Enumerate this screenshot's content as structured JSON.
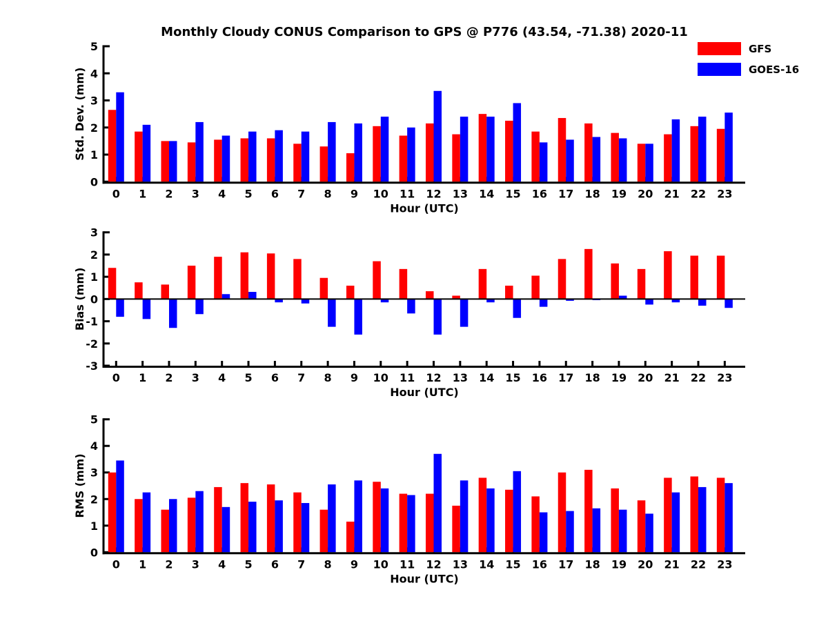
{
  "title": "Monthly Cloudy CONUS Comparison to GPS @ P776 (43.54, -71.38) 2020-11",
  "legend": {
    "position": "top-right",
    "items": [
      {
        "label": "GFS",
        "color": "#ff0000"
      },
      {
        "label": "GOES-16",
        "color": "#0000ff"
      }
    ]
  },
  "chart_data": [
    {
      "id": "stddev",
      "type": "bar",
      "ylabel": "Std. Dev. (mm)",
      "xlabel": "Hour (UTC)",
      "ylim": [
        0,
        5
      ],
      "yticks": [
        0,
        1,
        2,
        3,
        4,
        5
      ],
      "categories": [
        0,
        1,
        2,
        3,
        4,
        5,
        6,
        7,
        8,
        9,
        10,
        11,
        12,
        13,
        14,
        15,
        16,
        17,
        18,
        19,
        20,
        21,
        22,
        23
      ],
      "grid": false,
      "series": [
        {
          "name": "GFS",
          "color": "#ff0000",
          "values": [
            2.65,
            1.85,
            1.5,
            1.45,
            1.55,
            1.6,
            1.6,
            1.4,
            1.3,
            1.05,
            2.05,
            1.7,
            2.15,
            1.75,
            2.5,
            2.25,
            1.85,
            2.35,
            2.15,
            1.8,
            1.4,
            1.75,
            2.05,
            1.95
          ]
        },
        {
          "name": "GOES-16",
          "color": "#0000ff",
          "values": [
            3.3,
            2.1,
            1.5,
            2.2,
            1.7,
            1.85,
            1.9,
            1.85,
            2.2,
            2.15,
            2.4,
            2.0,
            3.35,
            2.4,
            2.4,
            2.9,
            1.45,
            1.55,
            1.65,
            1.6,
            1.4,
            2.3,
            2.4,
            2.55
          ]
        }
      ]
    },
    {
      "id": "bias",
      "type": "bar",
      "ylabel": "Bias (mm)",
      "xlabel": "Hour (UTC)",
      "ylim": [
        -3,
        3
      ],
      "yticks": [
        -3,
        -2,
        -1,
        0,
        1,
        2,
        3
      ],
      "categories": [
        0,
        1,
        2,
        3,
        4,
        5,
        6,
        7,
        8,
        9,
        10,
        11,
        12,
        13,
        14,
        15,
        16,
        17,
        18,
        19,
        20,
        21,
        22,
        23
      ],
      "grid": false,
      "series": [
        {
          "name": "GFS",
          "color": "#ff0000",
          "values": [
            1.4,
            0.75,
            0.65,
            1.5,
            1.9,
            2.1,
            2.05,
            1.8,
            0.95,
            0.6,
            1.7,
            1.35,
            0.35,
            0.15,
            1.35,
            0.6,
            1.05,
            1.8,
            2.25,
            1.6,
            1.35,
            2.15,
            1.95,
            1.95
          ]
        },
        {
          "name": "GOES-16",
          "color": "#0000ff",
          "values": [
            -0.8,
            -0.9,
            -1.3,
            -0.68,
            0.22,
            0.32,
            -0.15,
            -0.2,
            -1.25,
            -1.6,
            -0.15,
            -0.65,
            -1.6,
            -1.25,
            -0.15,
            -0.85,
            -0.35,
            -0.08,
            -0.05,
            0.15,
            -0.25,
            -0.15,
            -0.3,
            -0.4
          ]
        }
      ]
    },
    {
      "id": "rms",
      "type": "bar",
      "ylabel": "RMS (mm)",
      "xlabel": "Hour (UTC)",
      "ylim": [
        0,
        5
      ],
      "yticks": [
        0,
        1,
        2,
        3,
        4,
        5
      ],
      "categories": [
        0,
        1,
        2,
        3,
        4,
        5,
        6,
        7,
        8,
        9,
        10,
        11,
        12,
        13,
        14,
        15,
        16,
        17,
        18,
        19,
        20,
        21,
        22,
        23
      ],
      "grid": false,
      "series": [
        {
          "name": "GFS",
          "color": "#ff0000",
          "values": [
            3.0,
            2.0,
            1.6,
            2.05,
            2.45,
            2.6,
            2.55,
            2.25,
            1.6,
            1.15,
            2.65,
            2.2,
            2.2,
            1.75,
            2.8,
            2.35,
            2.1,
            3.0,
            3.1,
            2.4,
            1.95,
            2.8,
            2.85,
            2.8
          ]
        },
        {
          "name": "GOES-16",
          "color": "#0000ff",
          "values": [
            3.45,
            2.25,
            2.0,
            2.3,
            1.7,
            1.9,
            1.95,
            1.85,
            2.55,
            2.7,
            2.4,
            2.15,
            3.7,
            2.7,
            2.4,
            3.05,
            1.5,
            1.55,
            1.65,
            1.6,
            1.45,
            2.25,
            2.45,
            2.6
          ]
        }
      ]
    }
  ]
}
